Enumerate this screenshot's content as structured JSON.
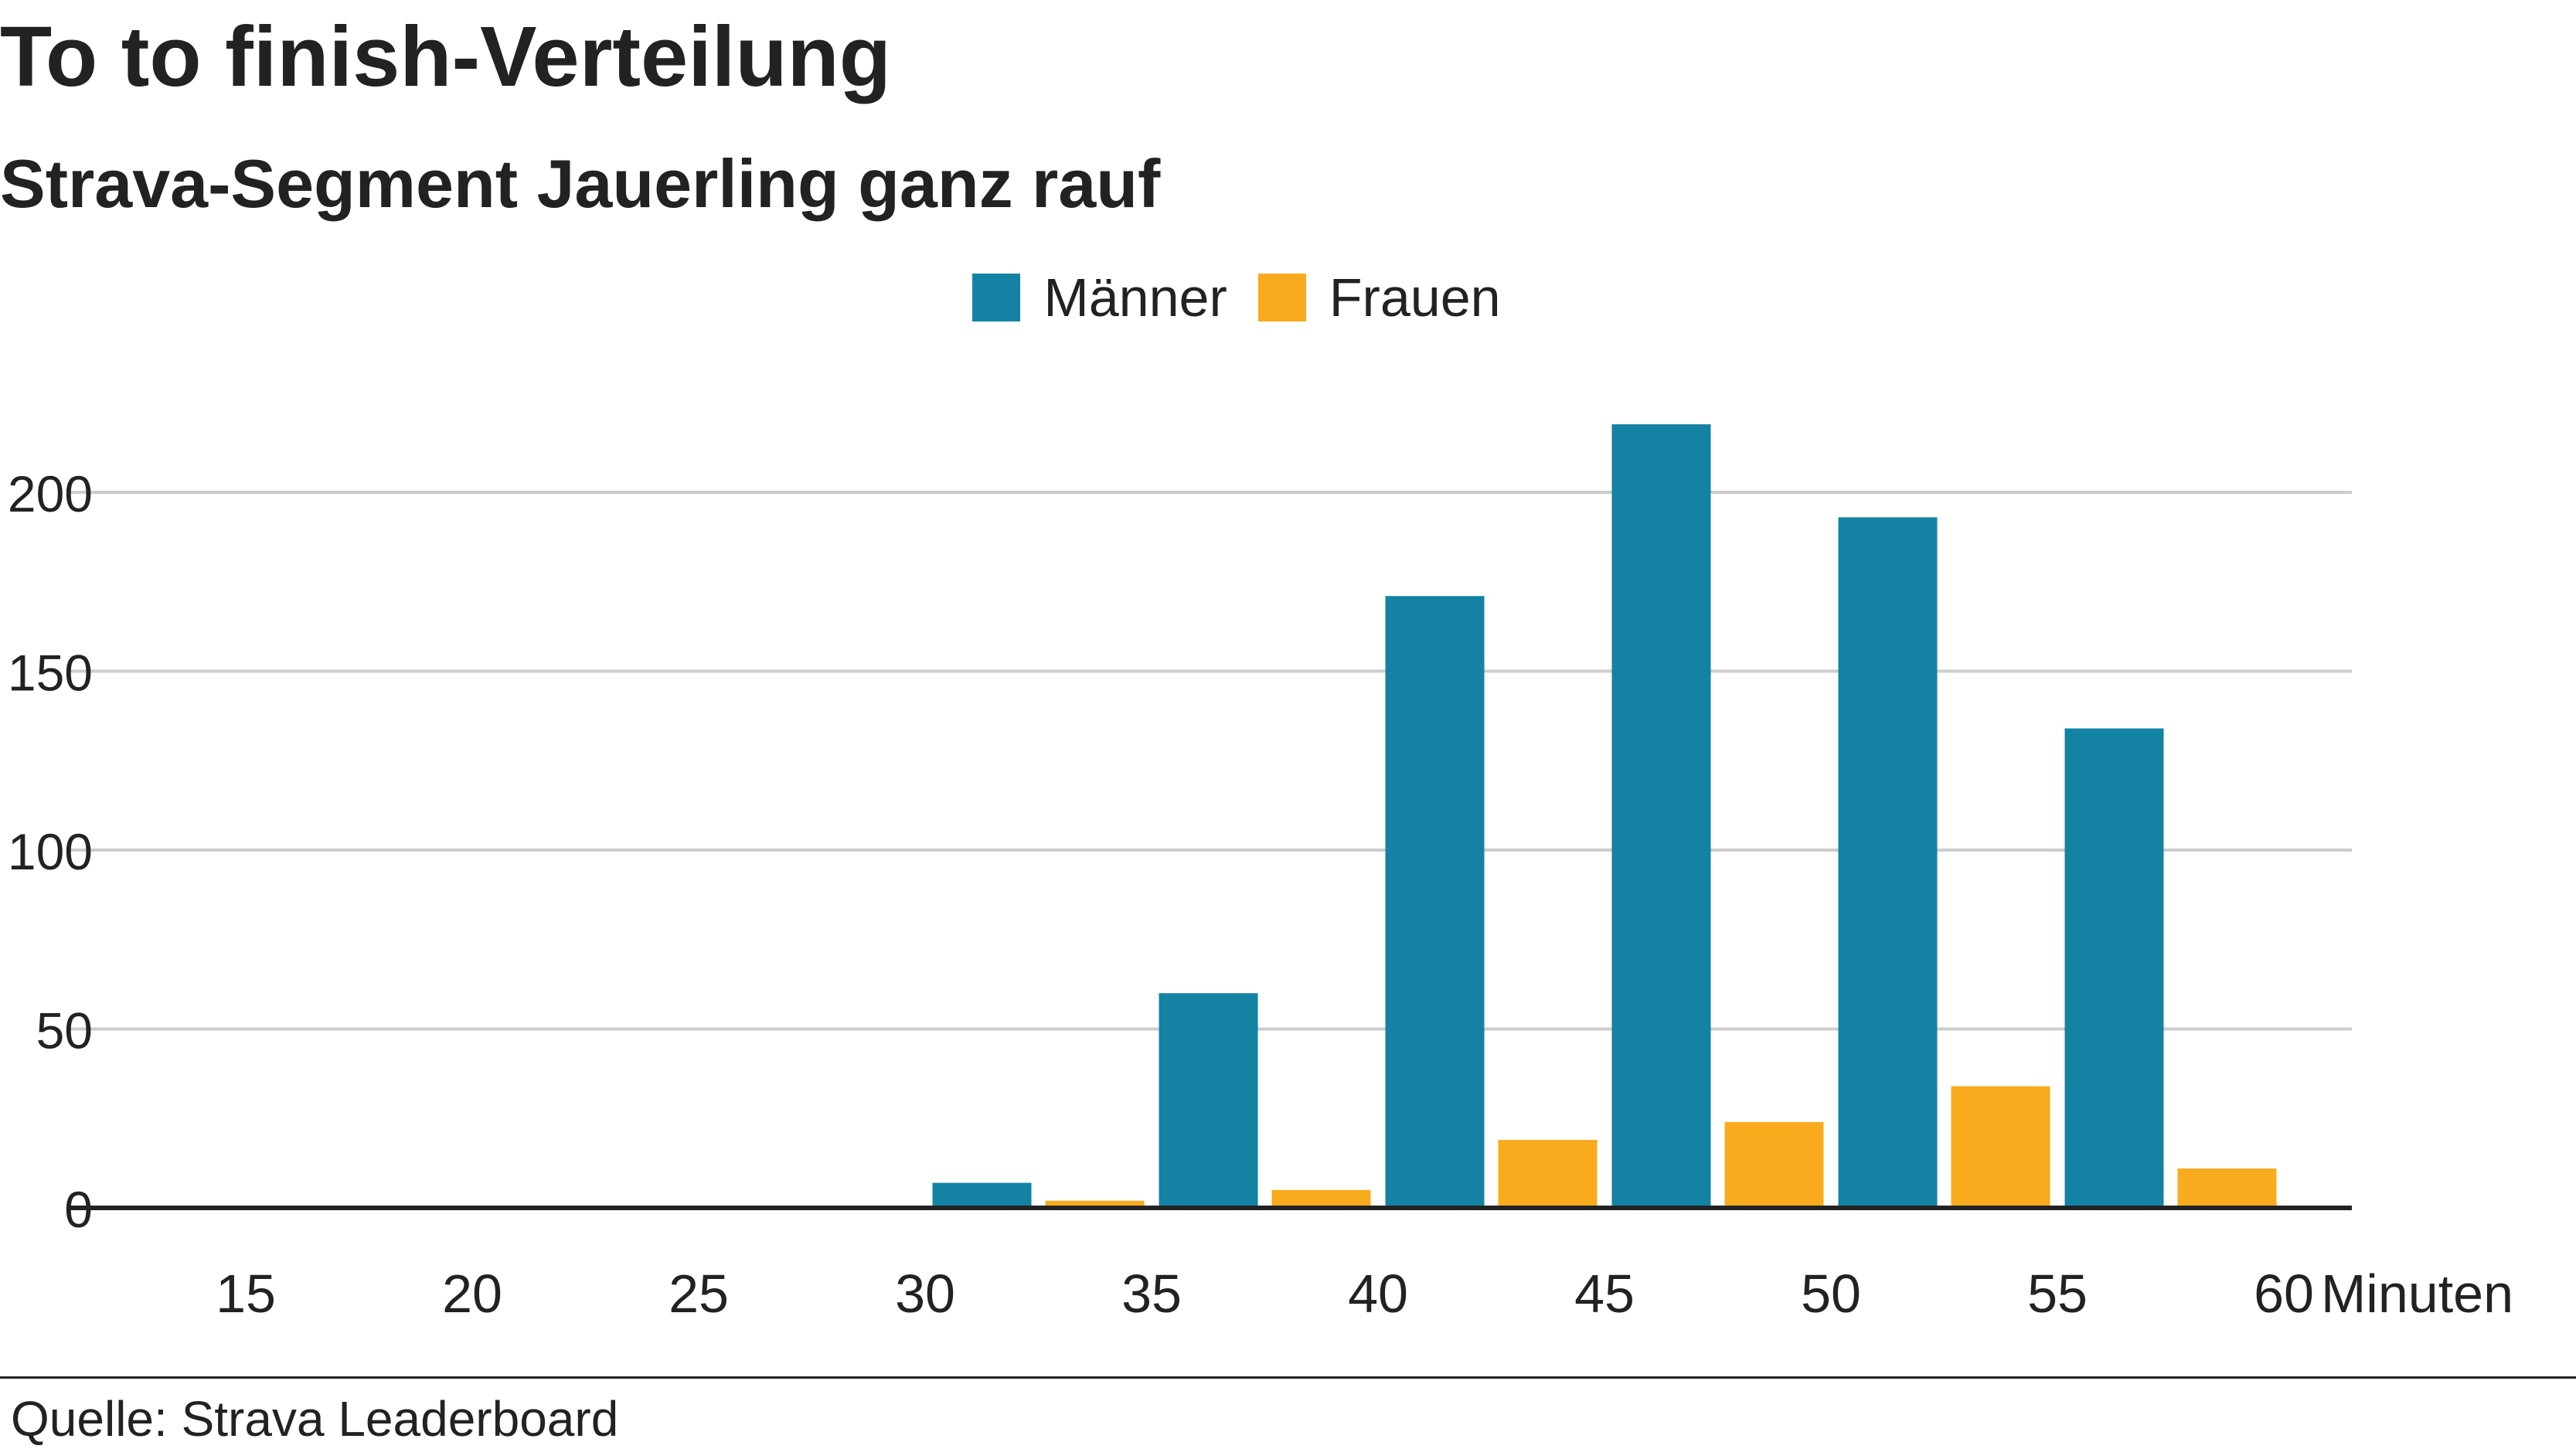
{
  "header": {
    "title": "To to finish-Verteilung",
    "subtitle": "Strava-Segment Jauerling ganz rauf"
  },
  "footer": {
    "source": "Quelle: Strava Leaderboard"
  },
  "colors": {
    "maenner": "#1482a2",
    "frauen": "#f8ab1d",
    "grid": "#cccccc",
    "axis": "#222222",
    "text": "#222222"
  },
  "chart_data": {
    "type": "bar",
    "title": "To to finish-Verteilung",
    "subtitle": "Strava-Segment Jauerling ganz rauf",
    "xlabel": "Minuten",
    "ylabel": "",
    "x_ticks": [
      "15",
      "20",
      "25",
      "30",
      "35",
      "40",
      "45",
      "50",
      "55",
      "60"
    ],
    "x_unit": "Minuten",
    "x_range": [
      15,
      60
    ],
    "y_ticks": [
      0,
      50,
      100,
      150,
      200
    ],
    "ylim": [
      0,
      220
    ],
    "grid": true,
    "legend_position": "top-center",
    "bin_width": 5,
    "categories": [
      "15",
      "20",
      "25",
      "30",
      "35",
      "40",
      "45",
      "50",
      "55"
    ],
    "series": [
      {
        "name": "Männer",
        "color": "#1482a2",
        "values": [
          0,
          0,
          0,
          7,
          60,
          171,
          219,
          193,
          134
        ]
      },
      {
        "name": "Frauen",
        "color": "#f8ab1d",
        "values": [
          0,
          0,
          0,
          2,
          5,
          19,
          24,
          34,
          11
        ]
      }
    ]
  }
}
